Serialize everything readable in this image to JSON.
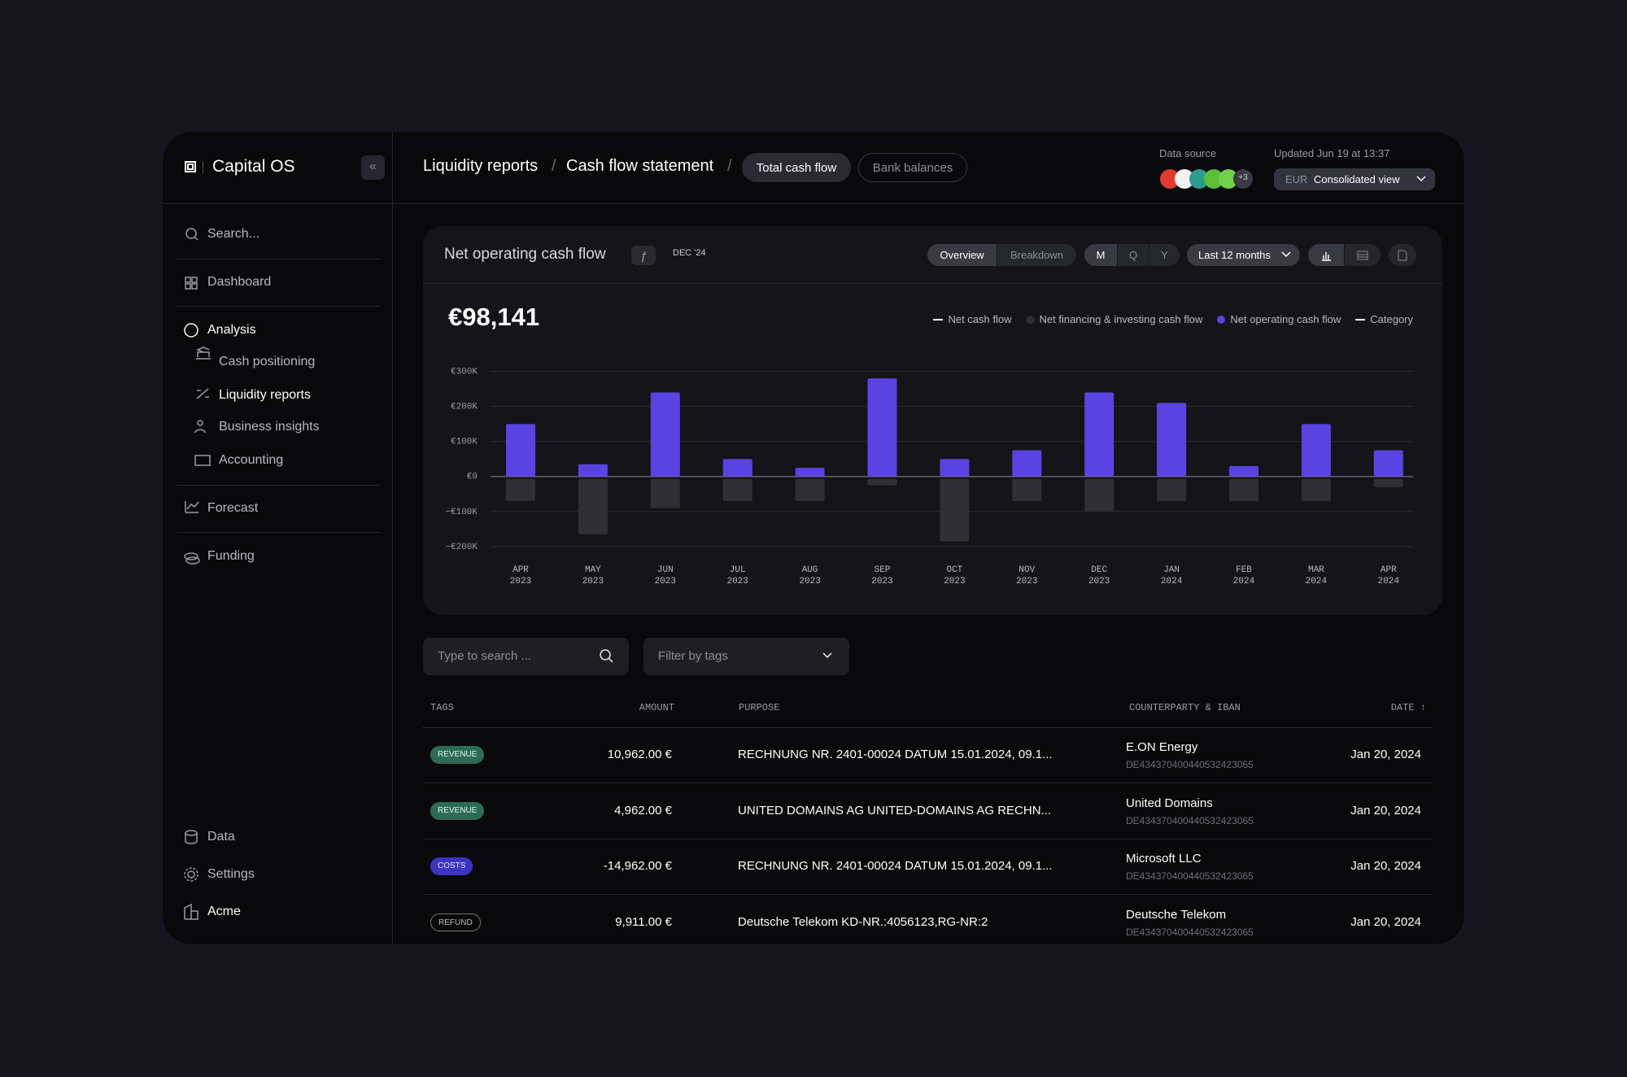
{
  "sidebar": {
    "brand": "Capital OS",
    "search": "Search...",
    "dashboard": "Dashboard",
    "analysis": "Analysis",
    "sub": [
      "Cash positioning",
      "Liquidity reports",
      "Business insights",
      "Accounting"
    ],
    "forecast": "Forecast",
    "funding": "Funding",
    "bottom": [
      "Data",
      "Settings",
      "Acme"
    ]
  },
  "topbar": {
    "crumbs": [
      "Liquidity reports",
      "/",
      "Cash flow statement",
      "/"
    ],
    "tabs": [
      "Total cash flow",
      "Bank balances"
    ],
    "data_source": "Data source",
    "more_sources": "+3",
    "updated": "Updated Jun 19 at 13:37",
    "currency": "EUR",
    "view": "Consolidated view"
  },
  "chart_data": {
    "type": "bar",
    "title": "Net operating cash flow",
    "period": "DEC '24",
    "view_toggle": [
      "Overview",
      "Breakdown"
    ],
    "interval_toggle": [
      "M",
      "Q",
      "Y"
    ],
    "range": "Last 12 months",
    "total": "€98,141",
    "legend_extra": [
      "Net cash flow",
      "Category"
    ],
    "categories": [
      [
        "APR",
        "2023"
      ],
      [
        "MAY",
        "2023"
      ],
      [
        "JUN",
        "2023"
      ],
      [
        "JUL",
        "2023"
      ],
      [
        "AUG",
        "2023"
      ],
      [
        "SEP",
        "2023"
      ],
      [
        "OCT",
        "2023"
      ],
      [
        "NOV",
        "2023"
      ],
      [
        "DEC",
        "2023"
      ],
      [
        "JAN",
        "2024"
      ],
      [
        "FEB",
        "2024"
      ],
      [
        "MAR",
        "2024"
      ],
      [
        "APR",
        "2024"
      ]
    ],
    "series": [
      {
        "name": "Net financing & investing cash flow",
        "color": "#302f38",
        "values": [
          -70000,
          -165000,
          -90000,
          -70000,
          -70000,
          -25000,
          -185000,
          -70000,
          -100000,
          -70000,
          -70000,
          -70000,
          -30000
        ]
      },
      {
        "name": "Net operating cash flow",
        "color": "#5a43e2",
        "values": [
          150000,
          35000,
          240000,
          50000,
          25000,
          280000,
          50000,
          75000,
          240000,
          210000,
          30000,
          150000,
          75000
        ]
      }
    ],
    "ylim": [
      -200000,
      300000
    ],
    "yticks": [
      {
        "value": -200000,
        "label": "−€200K"
      },
      {
        "value": -100000,
        "label": "−€100K"
      },
      {
        "value": 0,
        "label": "€0"
      },
      {
        "value": 100000,
        "label": "€100K"
      },
      {
        "value": 200000,
        "label": "€200K"
      },
      {
        "value": 300000,
        "label": "€300K"
      }
    ],
    "grid": true
  },
  "filters": {
    "search": "Type to search ...",
    "tags": "Filter by tags"
  },
  "table": {
    "headers": [
      "TAGS",
      "AMOUNT",
      "PURPOSE",
      "COUNTERPARTY & IBAN",
      "DATE ↑"
    ],
    "rows": [
      [
        "REVENUE",
        "10,962.00 €",
        "RECHNUNG NR. 2401-00024 DATUM 15.01.2024, 09.1...",
        "E.ON Energy",
        "DE43437040044053242306​5",
        "Jan 20, 2024"
      ],
      [
        "REVENUE",
        "4,962.00 €",
        "UNITED DOMAINS AG UNITED-DOMAINS AG RECHN...",
        "United Domains",
        "DE434370400440532423065",
        "Jan 20, 2024"
      ],
      [
        "COSTS",
        "-14,962.00 €",
        "RECHNUNG NR. 2401-00024 DATUM 15.01.2024, 09.1...",
        "Microsoft LLC",
        "DE434370400440532423065",
        "Jan 20, 2024"
      ],
      [
        "REFUND",
        "9,911.00 €",
        "Deutsche Telekom  KD-NR.:4056123,RG-NR:2",
        "Deutsche Telekom",
        "DE434370400440532423065",
        "Jan 20, 2024"
      ]
    ]
  }
}
